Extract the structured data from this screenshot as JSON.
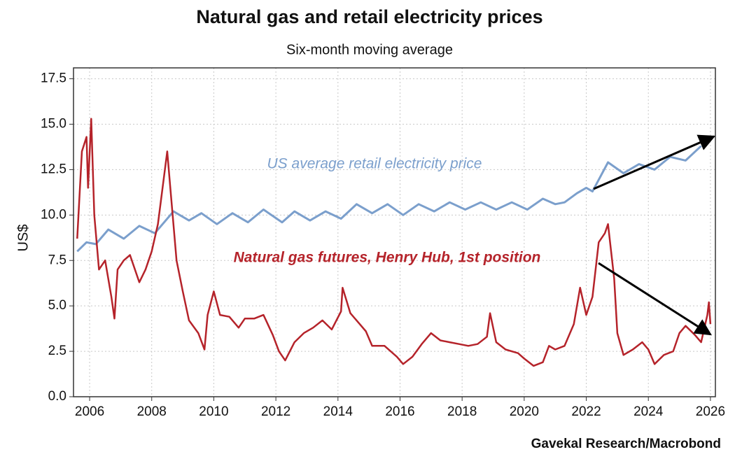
{
  "chart_data": {
    "type": "line",
    "title": "Natural gas and retail electricity prices",
    "subtitle": "Six-month moving average",
    "y_label": "US$",
    "source": "Gavekal Research/Macrobond",
    "annotations": [
      "US average retail electricity price",
      "Natural gas futures, Henry Hub, 1st position"
    ],
    "xlim": [
      2005.48,
      2026.16
    ],
    "xticks": [
      2006,
      2008,
      2010,
      2012,
      2014,
      2016,
      2018,
      2020,
      2022,
      2024,
      2026
    ],
    "ylim": [
      0,
      18.1
    ],
    "yticks": [
      {
        "value": 0,
        "label": "0.0"
      },
      2.5,
      {
        "value": 5,
        "label": "5.0"
      },
      7.5,
      {
        "value": 10,
        "label": "10.0"
      },
      12.5,
      {
        "value": 15,
        "label": "15.0"
      },
      17.5
    ],
    "grid": true,
    "series": [
      {
        "name": "US average retail electricity price",
        "color": "#7b9fcc",
        "x": [
          2005.6,
          2005.9,
          2006.2,
          2006.6,
          2007.1,
          2007.6,
          2008.1,
          2008.7,
          2009.2,
          2009.6,
          2010.1,
          2010.6,
          2011.1,
          2011.6,
          2012.2,
          2012.6,
          2013.1,
          2013.6,
          2014.1,
          2014.6,
          2015.1,
          2015.6,
          2016.1,
          2016.6,
          2017.1,
          2017.6,
          2018.1,
          2018.6,
          2019.1,
          2019.6,
          2020.1,
          2020.6,
          2021.0,
          2021.3,
          2021.7,
          2022.0,
          2022.2,
          2022.7,
          2023.2,
          2023.7,
          2024.2,
          2024.7,
          2025.2,
          2025.7
        ],
        "values": [
          8.0,
          8.5,
          8.4,
          9.2,
          8.7,
          9.4,
          9.0,
          10.2,
          9.7,
          10.1,
          9.5,
          10.1,
          9.6,
          10.3,
          9.6,
          10.2,
          9.7,
          10.2,
          9.8,
          10.6,
          10.1,
          10.6,
          10.0,
          10.6,
          10.2,
          10.7,
          10.3,
          10.7,
          10.3,
          10.7,
          10.3,
          10.9,
          10.6,
          10.7,
          11.2,
          11.5,
          11.3,
          12.9,
          12.3,
          12.8,
          12.5,
          13.2,
          13.0,
          13.8
        ]
      },
      {
        "name": "Natural gas futures, Henry Hub, 1st position",
        "color": "#b5232a",
        "x": [
          2005.6,
          2005.75,
          2005.9,
          2005.95,
          2006.05,
          2006.15,
          2006.3,
          2006.5,
          2006.7,
          2006.8,
          2006.9,
          2007.1,
          2007.3,
          2007.6,
          2007.8,
          2008.0,
          2008.2,
          2008.5,
          2008.6,
          2008.8,
          2009.0,
          2009.2,
          2009.5,
          2009.7,
          2009.8,
          2010.0,
          2010.2,
          2010.5,
          2010.8,
          2011.0,
          2011.3,
          2011.6,
          2011.9,
          2012.1,
          2012.3,
          2012.6,
          2012.9,
          2013.2,
          2013.5,
          2013.8,
          2014.1,
          2014.15,
          2014.4,
          2014.7,
          2014.9,
          2015.1,
          2015.5,
          2015.9,
          2016.1,
          2016.4,
          2016.7,
          2017.0,
          2017.3,
          2017.6,
          2017.9,
          2018.2,
          2018.5,
          2018.8,
          2018.9,
          2019.1,
          2019.4,
          2019.8,
          2020.0,
          2020.3,
          2020.6,
          2020.8,
          2021.0,
          2021.3,
          2021.6,
          2021.8,
          2022.0,
          2022.2,
          2022.4,
          2022.6,
          2022.7,
          2022.9,
          2023.0,
          2023.2,
          2023.5,
          2023.8,
          2024.0,
          2024.2,
          2024.5,
          2024.8,
          2025.0,
          2025.2,
          2025.5,
          2025.7,
          2025.9,
          2025.95,
          2026.0
        ],
        "values": [
          8.7,
          13.5,
          14.3,
          11.5,
          15.3,
          10.0,
          7.0,
          7.5,
          5.5,
          4.3,
          7.0,
          7.5,
          7.8,
          6.3,
          7.0,
          8.0,
          9.5,
          13.5,
          11.5,
          7.5,
          5.8,
          4.2,
          3.5,
          2.6,
          4.5,
          5.8,
          4.5,
          4.4,
          3.8,
          4.3,
          4.3,
          4.5,
          3.4,
          2.5,
          2.0,
          3.0,
          3.5,
          3.8,
          4.2,
          3.7,
          4.7,
          6.0,
          4.6,
          4.0,
          3.6,
          2.8,
          2.8,
          2.2,
          1.8,
          2.2,
          2.9,
          3.5,
          3.1,
          3.0,
          2.9,
          2.8,
          2.9,
          3.3,
          4.6,
          3.0,
          2.6,
          2.4,
          2.1,
          1.7,
          1.9,
          2.8,
          2.6,
          2.8,
          4.0,
          6.0,
          4.5,
          5.5,
          8.5,
          9.0,
          9.5,
          6.5,
          3.5,
          2.3,
          2.6,
          3.0,
          2.6,
          1.8,
          2.3,
          2.5,
          3.5,
          3.9,
          3.4,
          3.0,
          4.5,
          5.2,
          4.0
        ]
      }
    ]
  }
}
